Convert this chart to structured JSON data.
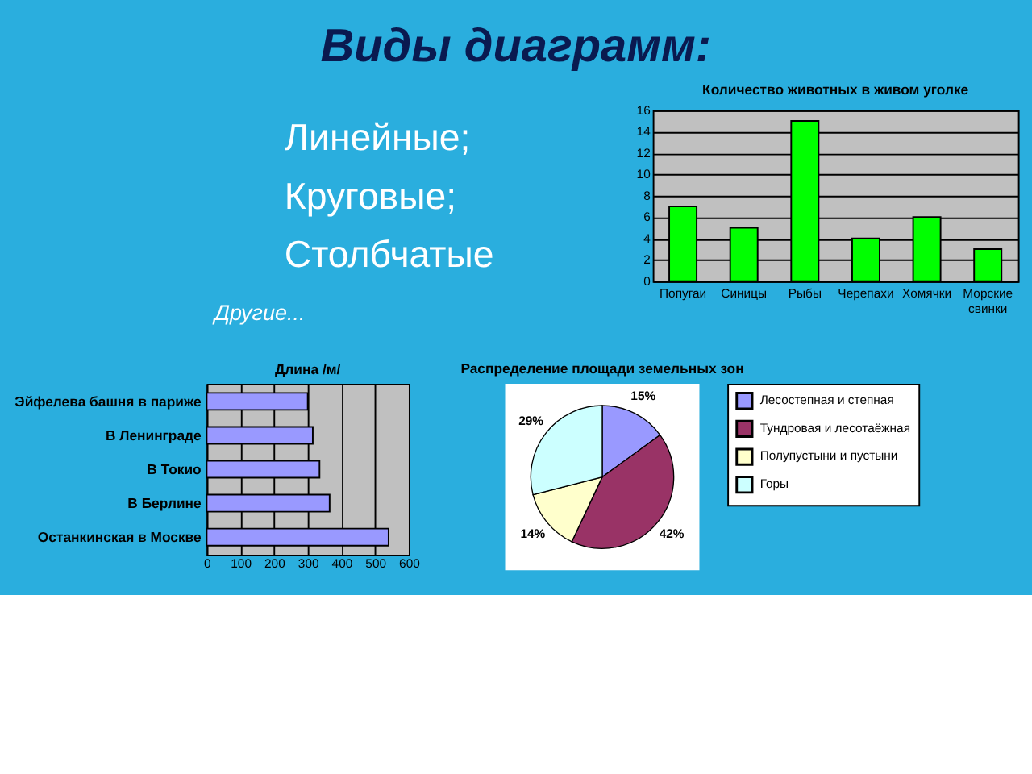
{
  "chart_data": [
    {
      "type": "other",
      "title": "Виды диаграмм:",
      "annotations": [
        "Линейные;",
        "Круговые;",
        "Столбчатые",
        "Другие..."
      ]
    },
    {
      "type": "bar",
      "title": "Количество животных в живом уголке",
      "categories": [
        "Попугаи",
        "Синицы",
        "Рыбы",
        "Черепахи",
        "Хомячки",
        "Морские свинки"
      ],
      "values": [
        7,
        5,
        15,
        4,
        6,
        3
      ],
      "color": "#00ff00",
      "ylim": [
        0,
        16
      ],
      "yticks": [
        0,
        2,
        4,
        6,
        8,
        10,
        12,
        14,
        16
      ],
      "grid": "y"
    },
    {
      "type": "bar",
      "orientation": "horizontal",
      "title": "Длина /м/",
      "categories": [
        "Эйфелева башня в париже",
        "В Ленинграде",
        "В Токио",
        "В Берлине",
        "Останкинская в Москве"
      ],
      "values": [
        300,
        315,
        335,
        365,
        540
      ],
      "color": "#9999ff",
      "xlim": [
        0,
        600
      ],
      "xticks": [
        0,
        100,
        200,
        300,
        400,
        500,
        600
      ],
      "grid": "x"
    },
    {
      "type": "pie",
      "title": "Распределение площади земельных зон",
      "categories": [
        "Лесостепная и степная",
        "Тундровая и лесотаёжная",
        "Полупустыни и пустыни",
        "Горы"
      ],
      "values": [
        15,
        42,
        14,
        29
      ],
      "colors": [
        "#9999ff",
        "#993366",
        "#ffffcc",
        "#ccffff"
      ],
      "value_labels": [
        "15%",
        "42%",
        "14%",
        "29%"
      ],
      "legend": "right"
    }
  ]
}
